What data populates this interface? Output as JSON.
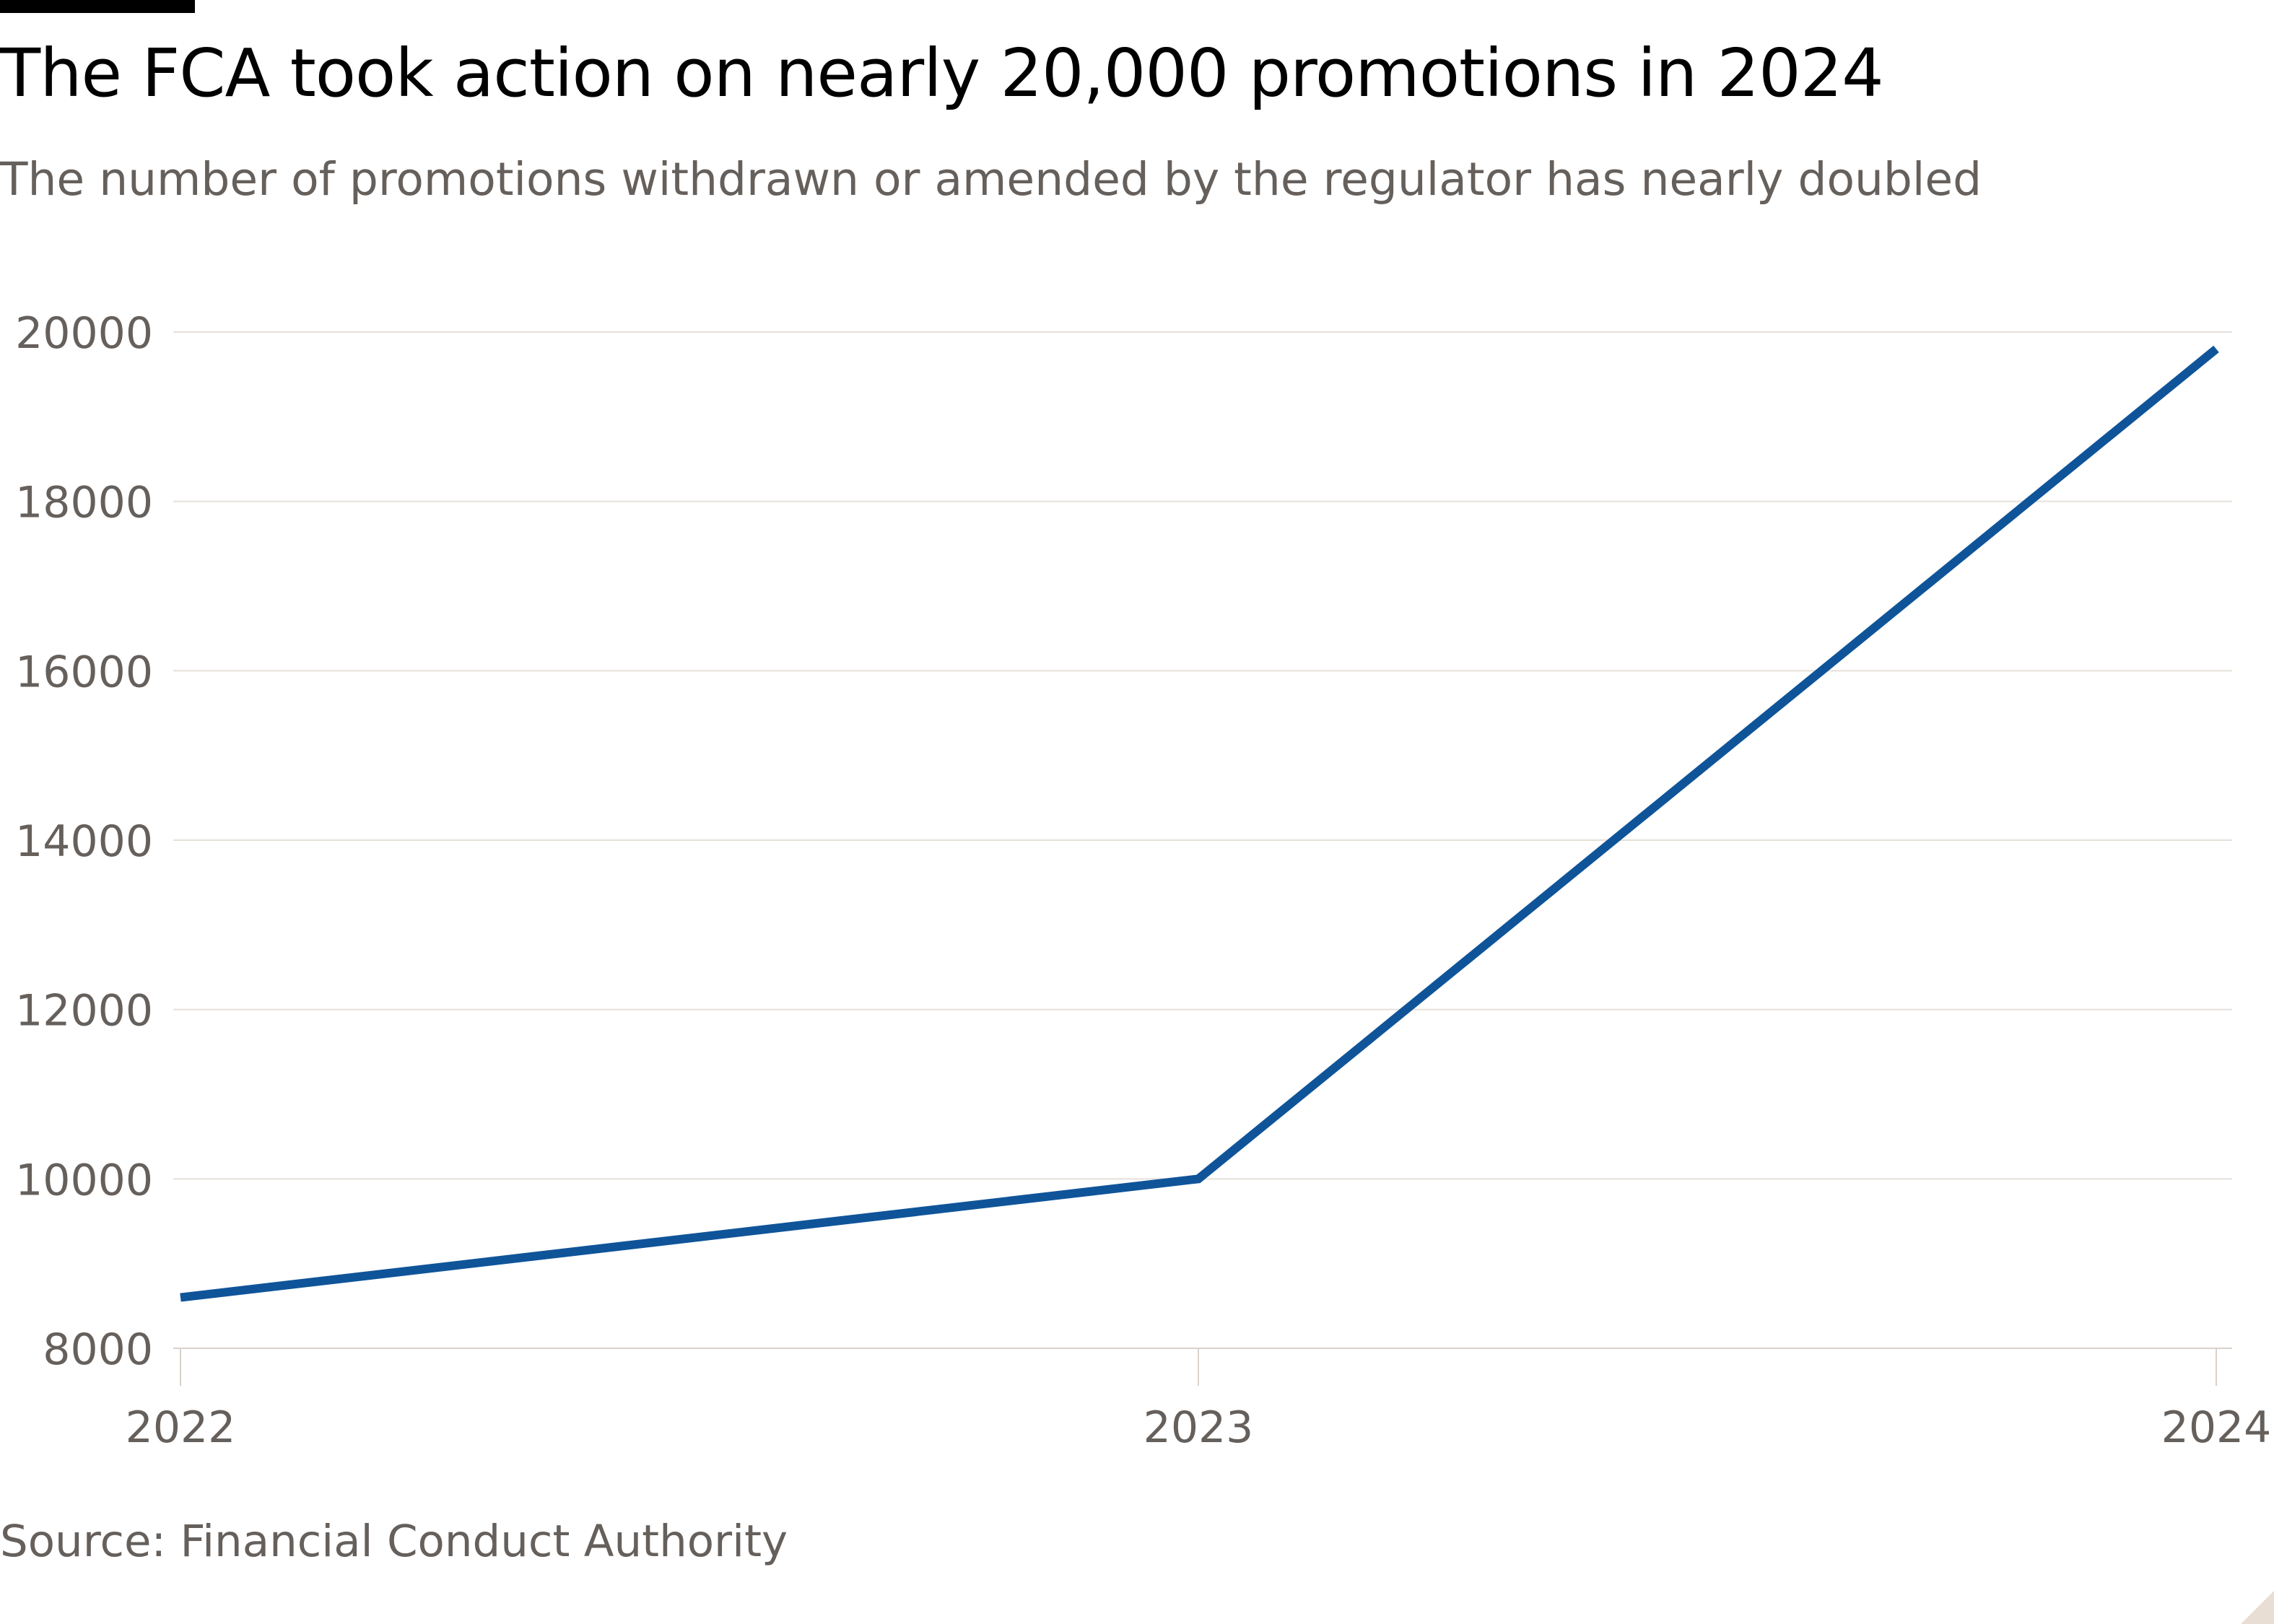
{
  "header": {
    "title": "The FCA took action on nearly 20,000 promotions in 2024",
    "subtitle": "The number of promotions withdrawn or amended by the regulator has nearly doubled"
  },
  "footer": {
    "source": "Source: Financial Conduct Authority"
  },
  "colors": {
    "line": "#0f5499",
    "grid": "#e6e0da",
    "axis_text": "#66605c"
  },
  "chart_data": {
    "type": "line",
    "title": "The FCA took action on nearly 20,000 promotions in 2024",
    "subtitle": "The number of promotions withdrawn or amended by the regulator has nearly doubled",
    "x": [
      "2022",
      "2023",
      "2024"
    ],
    "series": [
      {
        "values": [
          8600,
          10000,
          19800
        ]
      }
    ],
    "yticks": [
      8000,
      10000,
      12000,
      14000,
      16000,
      18000,
      20000
    ],
    "ylim": [
      8000,
      20000
    ],
    "xlabel": "",
    "ylabel": "",
    "grid": true,
    "legend": "none"
  }
}
